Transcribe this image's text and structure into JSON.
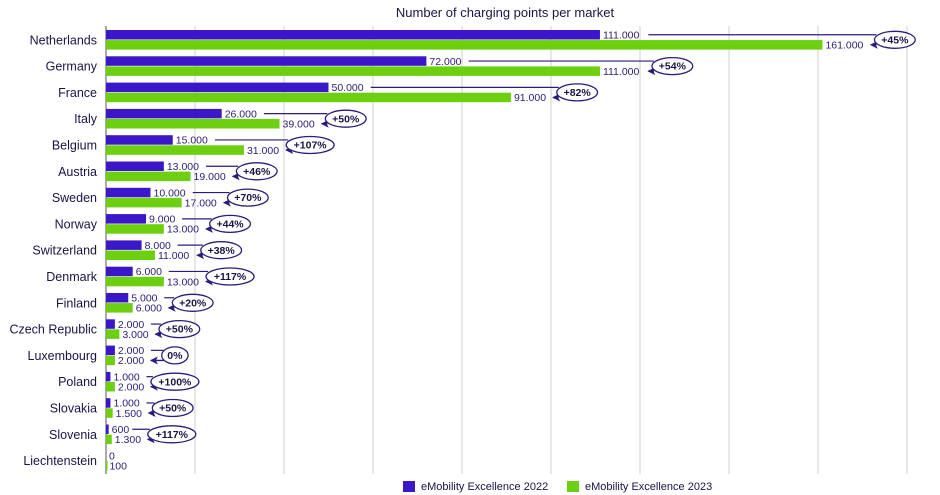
{
  "colors": {
    "series_2022": "#3b17c9",
    "series_2023": "#6ccf0f",
    "grid": "#cfcfcf",
    "text": "#1a1446",
    "arrow": "#2a1d7a"
  },
  "chart_data": {
    "type": "bar",
    "orientation": "horizontal",
    "title": "Number of charging points per market",
    "xlim": [
      0,
      180000
    ],
    "grid": true,
    "legend_position": "bottom",
    "categories": [
      "Netherlands",
      "Germany",
      "France",
      "Italy",
      "Belgium",
      "Austria",
      "Sweden",
      "Norway",
      "Switzerland",
      "Denmark",
      "Finland",
      "Czech Republic",
      "Luxembourg",
      "Poland",
      "Slovakia",
      "Slovenia",
      "Liechtenstein"
    ],
    "series": [
      {
        "name": "eMobility Excellence 2022",
        "values": [
          111000,
          72000,
          50000,
          26000,
          15000,
          13000,
          10000,
          9000,
          8000,
          6000,
          5000,
          2000,
          2000,
          1000,
          1000,
          600,
          0
        ],
        "labels": [
          "111.000",
          "72.000",
          "50.000",
          "26.000",
          "15.000",
          "13.000",
          "10.000",
          "9.000",
          "8.000",
          "6.000",
          "5.000",
          "2.000",
          "2.000",
          "1.000",
          "1.000",
          "600",
          "0"
        ]
      },
      {
        "name": "eMobility Excellence 2023",
        "values": [
          161000,
          111000,
          91000,
          39000,
          31000,
          19000,
          17000,
          13000,
          11000,
          13000,
          6000,
          3000,
          2000,
          2000,
          1500,
          1300,
          100
        ],
        "labels": [
          "161.000",
          "111.000",
          "91.000",
          "39.000",
          "31.000",
          "19.000",
          "17.000",
          "13.000",
          "11.000",
          "13.000",
          "6.000",
          "3.000",
          "2.000",
          "2.000",
          "1.500",
          "1.300",
          "100"
        ]
      }
    ],
    "growth": [
      "+45%",
      "+54%",
      "+82%",
      "+50%",
      "+107%",
      "+46%",
      "+70%",
      "+44%",
      "+38%",
      "+117%",
      "+20%",
      "+50%",
      "0%",
      "+100%",
      "+50%",
      "+117%",
      ""
    ]
  }
}
